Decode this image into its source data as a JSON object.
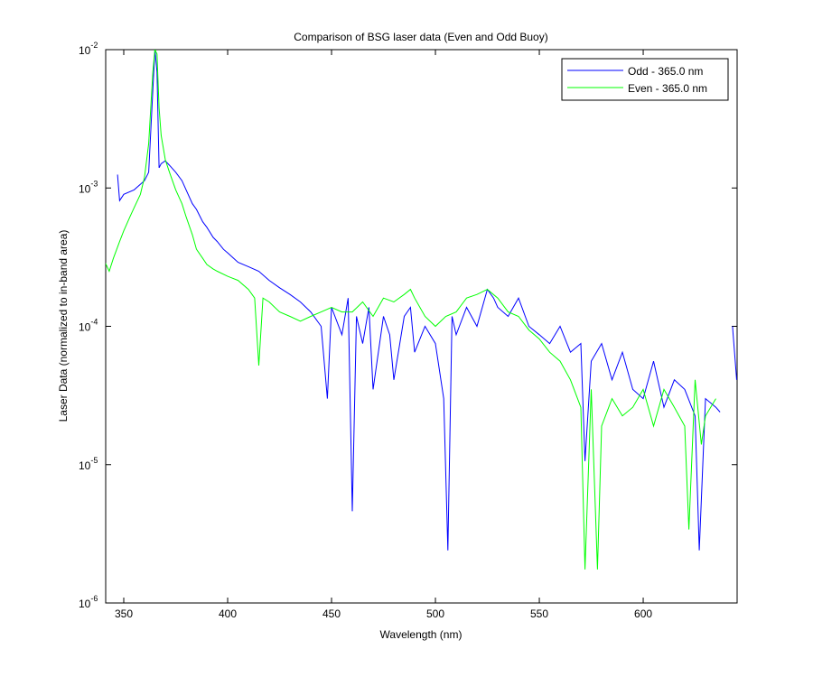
{
  "chart_data": {
    "type": "line",
    "title": "Comparison of BSG laser data (Even and Odd Buoy)",
    "xlabel": "Wavelength (nm)",
    "ylabel": "Laser Data (normalized to in-band area)",
    "log_y": true,
    "xlim": [
      341.3,
      645.2
    ],
    "ylim": [
      1e-06,
      0.01
    ],
    "xticks": [
      350,
      400,
      450,
      500,
      550,
      600
    ],
    "yticks": [
      {
        "value": 1e-06,
        "label": "10",
        "exponent": "-6"
      },
      {
        "value": 1e-05,
        "label": "10",
        "exponent": "-5"
      },
      {
        "value": 0.0001,
        "label": "10",
        "exponent": "-4"
      },
      {
        "value": 0.001,
        "label": "10",
        "exponent": "-3"
      },
      {
        "value": 0.01,
        "label": "10",
        "exponent": "-2"
      }
    ],
    "legend": "top-right",
    "series": [
      {
        "name": "Odd - 365.0 nm",
        "color": "#0000ff",
        "x": [
          347,
          348,
          350,
          355,
          360,
          362,
          364,
          365,
          366,
          367,
          368,
          370,
          372,
          375,
          378,
          380,
          383,
          385,
          388,
          390,
          393,
          395,
          398,
          400,
          405,
          410,
          415,
          420,
          425,
          430,
          435,
          440,
          445,
          448,
          450,
          455,
          458,
          460,
          462,
          465,
          468,
          470,
          475,
          478,
          480,
          485,
          488,
          490,
          495,
          500,
          504,
          506,
          508,
          510,
          515,
          520,
          525,
          528,
          530,
          535,
          540,
          545,
          550,
          555,
          560,
          565,
          570,
          572,
          575,
          580,
          585,
          590,
          595,
          600,
          605,
          610,
          615,
          620,
          625,
          627,
          630,
          635,
          637,
          640,
          643,
          645
        ],
        "values": [
          0.00125,
          0.00081,
          0.0009,
          0.00097,
          0.00113,
          0.0013,
          0.0051,
          0.01,
          0.0069,
          0.0014,
          0.0015,
          0.00157,
          0.00146,
          0.0013,
          0.00113,
          0.00097,
          0.00077,
          0.0007,
          0.00057,
          0.00052,
          0.00044,
          0.00041,
          0.00036,
          0.00034,
          0.00029,
          0.00027,
          0.00025,
          0.000215,
          0.00019,
          0.00017,
          0.00015,
          0.000127,
          0.0001,
          3e-05,
          0.000137,
          8.7e-05,
          0.00016,
          4.6e-06,
          0.000118,
          7.5e-05,
          0.000137,
          3.5e-05,
          0.000118,
          8.7e-05,
          4.1e-05,
          0.000118,
          0.000137,
          6.5e-05,
          0.0001,
          7.5e-05,
          3e-05,
          2.4e-06,
          0.000118,
          8.7e-05,
          0.000137,
          0.0001,
          0.000185,
          0.00016,
          0.000137,
          0.000118,
          0.00016,
          0.0001,
          8.7e-05,
          7.5e-05,
          0.0001,
          6.5e-05,
          7.5e-05,
          1.06e-05,
          5.6e-05,
          7.5e-05,
          4.1e-05,
          6.5e-05,
          3.5e-05,
          3e-05,
          5.6e-05,
          2.6e-05,
          4.1e-05,
          3.5e-05,
          2.25e-05,
          2.4e-06,
          3e-05,
          2.6e-05,
          2.4e-05,
          null,
          0.0001,
          4.1e-05
        ]
      },
      {
        "name": "Even - 365.0 nm",
        "color": "#00ff00",
        "x": [
          341,
          343,
          345,
          348,
          350,
          353,
          355,
          358,
          360,
          362,
          364,
          365,
          366,
          367,
          368,
          370,
          372,
          375,
          378,
          380,
          383,
          385,
          388,
          390,
          393,
          395,
          400,
          405,
          410,
          413,
          415,
          417,
          420,
          425,
          430,
          435,
          440,
          445,
          450,
          455,
          460,
          465,
          470,
          475,
          480,
          485,
          488,
          490,
          495,
          500,
          505,
          510,
          515,
          520,
          525,
          530,
          535,
          540,
          545,
          550,
          555,
          560,
          565,
          570,
          572,
          575,
          578,
          580,
          585,
          590,
          595,
          600,
          605,
          610,
          615,
          620,
          622,
          625,
          628,
          630,
          635
        ],
        "values": [
          0.00029,
          0.00025,
          0.00031,
          0.00041,
          0.00049,
          0.00062,
          0.00072,
          0.0009,
          0.0012,
          0.0021,
          0.0069,
          0.01,
          0.0093,
          0.0038,
          0.0024,
          0.0016,
          0.0013,
          0.00097,
          0.00077,
          0.00062,
          0.00046,
          0.00036,
          0.00031,
          0.00028,
          0.00026,
          0.00025,
          0.00023,
          0.000215,
          0.000185,
          0.00016,
          5.2e-05,
          0.00016,
          0.00015,
          0.000127,
          0.000118,
          0.000109,
          0.000118,
          0.000127,
          0.000137,
          0.000127,
          0.000127,
          0.00015,
          0.000118,
          0.00016,
          0.00015,
          0.00017,
          0.000185,
          0.00016,
          0.000118,
          0.0001,
          0.000118,
          0.000127,
          0.00016,
          0.00017,
          0.000185,
          0.00016,
          0.000127,
          0.000118,
          9.4e-05,
          8.1e-05,
          6.5e-05,
          5.6e-05,
          4.1e-05,
          2.6e-05,
          1.75e-06,
          3.5e-05,
          1.75e-06,
          1.9e-05,
          3e-05,
          2.25e-05,
          2.6e-05,
          3.5e-05,
          1.9e-05,
          3.5e-05,
          2.6e-05,
          1.9e-05,
          3.4e-06,
          4.1e-05,
          1.4e-05,
          2.25e-05,
          3e-05
        ]
      }
    ]
  }
}
